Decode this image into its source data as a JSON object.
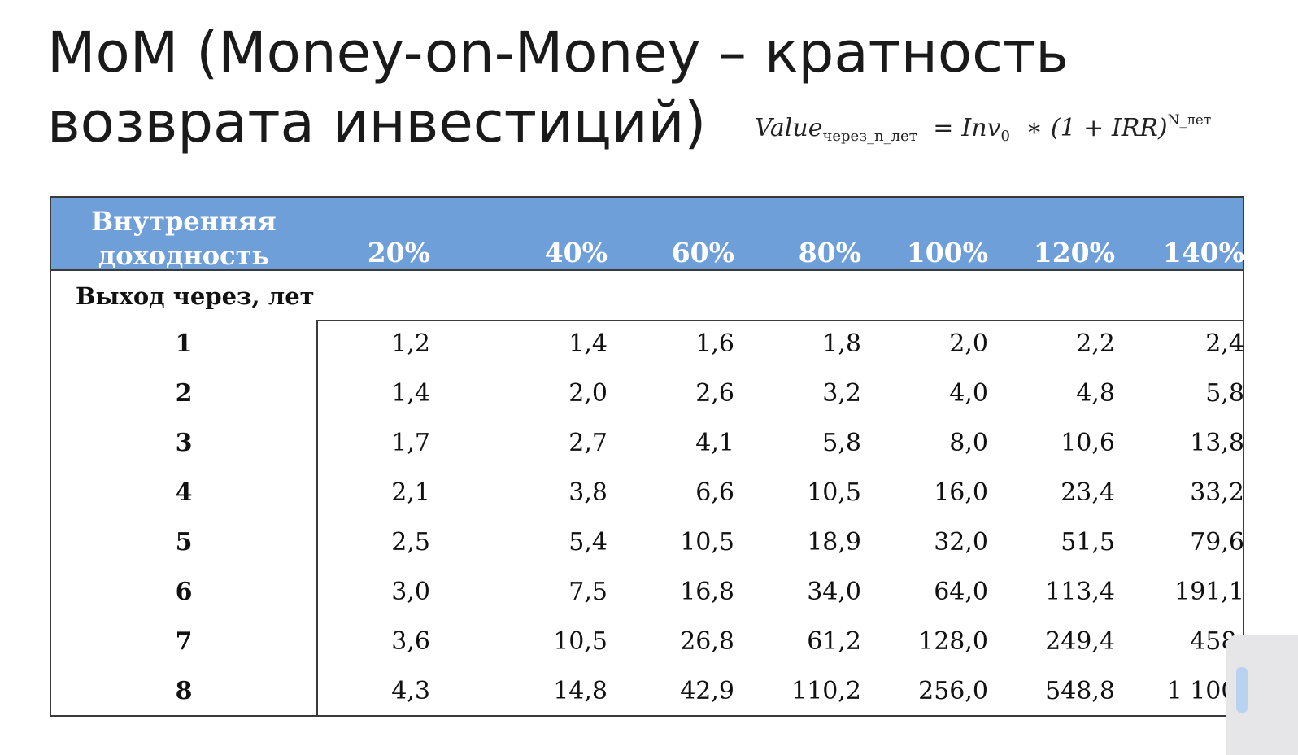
{
  "title": {
    "line1": "MoM (Money-on-Money – кратность",
    "line2": "возврата инвестиций)"
  },
  "formula": {
    "lhs": "Value",
    "lhs_sub": "через_n_лет",
    "eq": "=",
    "inv": "Inv",
    "inv_sub": "0",
    "mult": "∗",
    "paren": "(1 + IRR)",
    "exp": "N_лет"
  },
  "table": {
    "corner_label": "Внутренняя доходность",
    "exit_label": "Выход через, лет",
    "columns": [
      "20%",
      "40%",
      "60%",
      "80%",
      "100%",
      "120%",
      "140%"
    ],
    "rows": [
      {
        "year": "1",
        "values": [
          "1,2",
          "1,4",
          "1,6",
          "1,8",
          "2,0",
          "2,2",
          "2,4"
        ]
      },
      {
        "year": "2",
        "values": [
          "1,4",
          "2,0",
          "2,6",
          "3,2",
          "4,0",
          "4,8",
          "5,8"
        ]
      },
      {
        "year": "3",
        "values": [
          "1,7",
          "2,7",
          "4,1",
          "5,8",
          "8,0",
          "10,6",
          "13,8"
        ]
      },
      {
        "year": "4",
        "values": [
          "2,1",
          "3,8",
          "6,6",
          "10,5",
          "16,0",
          "23,4",
          "33,2"
        ]
      },
      {
        "year": "5",
        "values": [
          "2,5",
          "5,4",
          "10,5",
          "18,9",
          "32,0",
          "51,5",
          "79,6"
        ]
      },
      {
        "year": "6",
        "values": [
          "3,0",
          "7,5",
          "16,8",
          "34,0",
          "64,0",
          "113,4",
          "191,1"
        ]
      },
      {
        "year": "7",
        "values": [
          "3,6",
          "10,5",
          "26,8",
          "61,2",
          "128,0",
          "249,4",
          "458,"
        ]
      },
      {
        "year": "8",
        "values": [
          "4,3",
          "14,8",
          "42,9",
          "110,2",
          "256,0",
          "548,8",
          "1 100,"
        ]
      }
    ]
  },
  "colors": {
    "header_bg": "#6f9fd9",
    "header_text": "#ffffff",
    "border": "#3a3a3a"
  }
}
